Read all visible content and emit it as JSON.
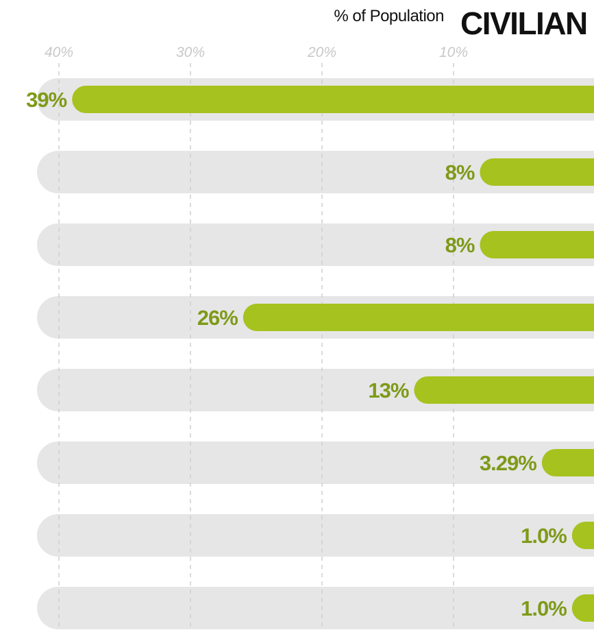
{
  "chart_data": {
    "type": "bar",
    "orientation": "horizontal",
    "direction": "right-to-left",
    "title": "CIVILIAN",
    "subtitle": "% of Population",
    "xlim": [
      0,
      40
    ],
    "x_ticks": [
      40,
      30,
      20,
      10
    ],
    "x_tick_labels": [
      "40%",
      "30%",
      "20%",
      "10%"
    ],
    "grid": true,
    "series": [
      {
        "values": [
          39,
          8,
          8,
          26,
          13,
          3.29,
          1.0,
          1.0
        ],
        "value_labels": [
          "39%",
          "8%",
          "8%",
          "26%",
          "13%",
          "3.29%",
          "1.0%",
          "1.0%"
        ]
      }
    ]
  },
  "colors": {
    "bar": "#a6c21e",
    "label": "#7e9a18",
    "track": "#e6e6e6",
    "grid": "#cfcfcf",
    "tick_text": "#c8c8c8",
    "title": "#111111"
  }
}
